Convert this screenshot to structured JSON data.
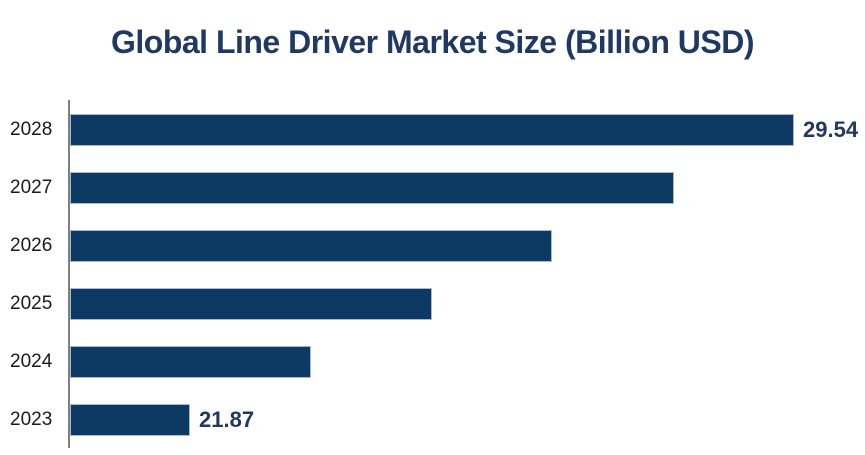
{
  "page": {
    "background": "#ffffff"
  },
  "chart_data": {
    "type": "bar",
    "orientation": "horizontal",
    "title": "Global Line Driver Market Size (Billion USD)",
    "categories": [
      "2028",
      "2027",
      "2026",
      "2025",
      "2024",
      "2023"
    ],
    "values": [
      29.54,
      28.01,
      26.47,
      24.94,
      23.4,
      21.87
    ],
    "data_labels": [
      "29.54",
      "",
      "",
      "",
      "",
      "21.87"
    ],
    "xlim": [
      20.34,
      29.54
    ],
    "grid": false,
    "legend": false,
    "bar_color": "#0C3A63",
    "bar_border_color": "#A7B9D6",
    "title_color": "#1F3864",
    "label_color": "#1F3864",
    "category_color": "#1A1A1A",
    "axis_color": "#7F7F7F"
  }
}
